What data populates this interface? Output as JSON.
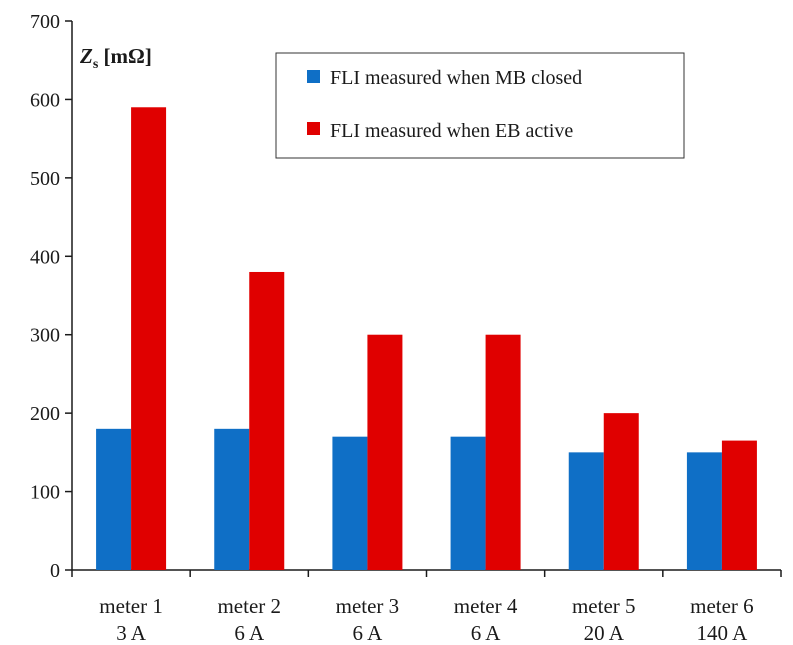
{
  "chart_data": {
    "type": "bar",
    "title": "",
    "ylabel": {
      "symbol": "Z",
      "subscript": "s",
      "unit": " [mΩ]"
    },
    "xlabel": "",
    "ylim": [
      0,
      700
    ],
    "yticks": [
      0,
      100,
      200,
      300,
      400,
      500,
      600,
      700
    ],
    "grid": false,
    "legend_position": "top-right",
    "categories": [
      [
        "meter 1",
        "3 A"
      ],
      [
        "meter 2",
        "6 A"
      ],
      [
        "meter 3",
        "6 A"
      ],
      [
        "meter 4",
        "6 A"
      ],
      [
        "meter 5",
        "20 A"
      ],
      [
        "meter 6",
        "140 A"
      ]
    ],
    "series": [
      {
        "name": "FLI measured when MB closed",
        "color": "#0f6fc6",
        "values": [
          180,
          180,
          170,
          170,
          150,
          150
        ]
      },
      {
        "name": "FLI measured when EB active",
        "color": "#e00000",
        "values": [
          590,
          380,
          300,
          300,
          200,
          165
        ]
      }
    ]
  }
}
